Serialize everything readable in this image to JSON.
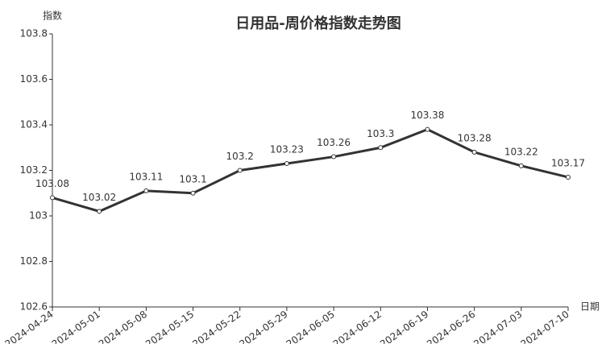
{
  "chart_data": {
    "type": "line",
    "title": "日用品-周价格指数走势图",
    "y_label": "指数",
    "x_label": "日期",
    "categories": [
      "2024-04-24",
      "2024-05-01",
      "2024-05-08",
      "2024-05-15",
      "2024-05-22",
      "2024-05-29",
      "2024-06-05",
      "2024-06-12",
      "2024-06-19",
      "2024-06-26",
      "2024-07-03",
      "2024-07-10"
    ],
    "series": [
      {
        "color": "#333333",
        "values": [
          103.08,
          103.02,
          103.11,
          103.1,
          103.2,
          103.23,
          103.26,
          103.3,
          103.38,
          103.28,
          103.22,
          103.17
        ]
      }
    ],
    "ylim": [
      102.6,
      103.8
    ],
    "yticks": [
      102.6,
      102.8,
      103,
      103.2,
      103.4,
      103.6,
      103.8
    ],
    "grid": false
  }
}
